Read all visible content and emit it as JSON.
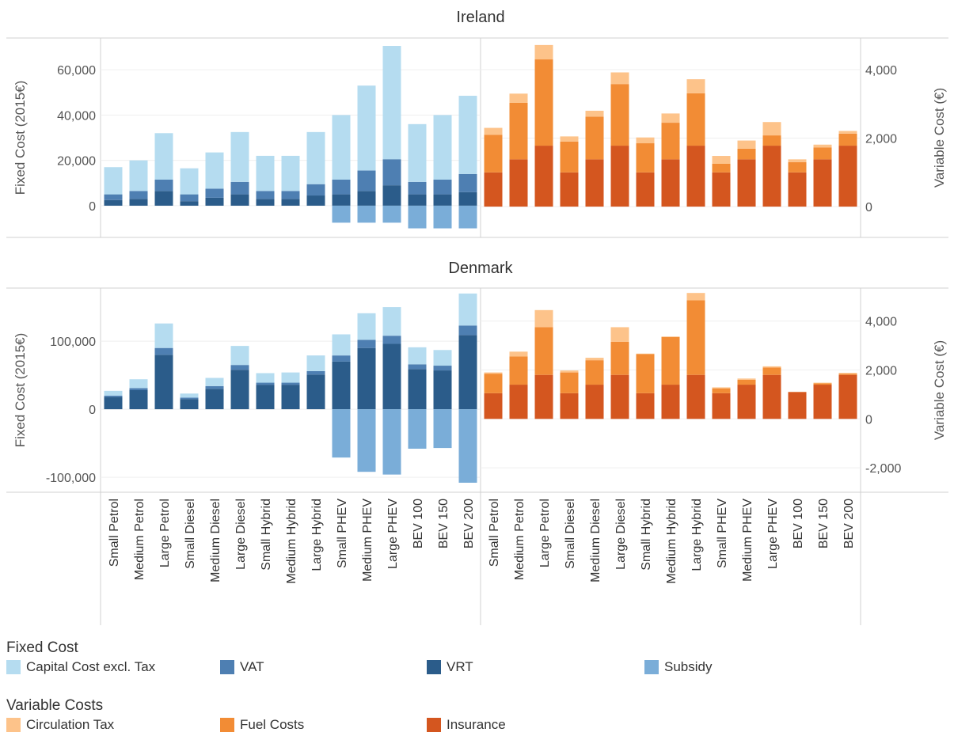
{
  "chart_data": [
    {
      "type": "bar",
      "title": "Ireland",
      "categories": [
        "Small Petrol",
        "Medium Petrol",
        "Large Petrol",
        "Small Diesel",
        "Medium Diesel",
        "Large Diesel",
        "Small Hybrid",
        "Medium Hybrid",
        "Large Hybrid",
        "Small PHEV",
        "Medium PHEV",
        "Large PHEV",
        "BEV 100",
        "BEV 150",
        "BEV 200"
      ],
      "fixed": {
        "ylabel": "Fixed Cost (2015€)",
        "ylim": [
          -14000,
          74000
        ],
        "ticks": [
          0,
          20000,
          40000,
          60000
        ],
        "tick_labels": [
          "0",
          "20,000",
          "40,000",
          "60,000"
        ],
        "series": [
          {
            "name": "VRT",
            "color": "#2b5c8a",
            "values": [
              2500,
              3000,
              6500,
              2000,
              3500,
              5000,
              3000,
              3000,
              4500,
              5000,
              6500,
              9000,
              5000,
              5000,
              6000
            ]
          },
          {
            "name": "VAT",
            "color": "#4e7fb2",
            "values": [
              2500,
              3500,
              5000,
              3000,
              4000,
              5500,
              3500,
              3500,
              5000,
              6500,
              9000,
              11500,
              5500,
              6500,
              8000
            ]
          },
          {
            "name": "Capital Cost excl. Tax",
            "color": "#b5dcf0",
            "values": [
              12000,
              13500,
              20500,
              11500,
              16000,
              22000,
              15500,
              15500,
              23000,
              28500,
              37500,
              50000,
              25500,
              28500,
              34500
            ]
          },
          {
            "name": "Subsidy",
            "color": "#7aadd8",
            "values": [
              0,
              0,
              0,
              0,
              0,
              0,
              0,
              0,
              0,
              -7500,
              -7500,
              -7500,
              -10000,
              -10000,
              -10000
            ]
          }
        ]
      },
      "variable": {
        "ylabel": "Variable Cost (€)",
        "ylim": [
          -900,
          4925
        ],
        "ticks": [
          0,
          2000,
          4000
        ],
        "tick_labels": [
          "0",
          "2,000",
          "4,000"
        ],
        "series": [
          {
            "name": "Insurance",
            "color": "#d4561f",
            "values": [
              1000,
              1380,
              1780,
              1000,
              1380,
              1780,
              1000,
              1380,
              1780,
              1000,
              1380,
              1780,
              1000,
              1380,
              1780
            ]
          },
          {
            "name": "Fuel Costs",
            "color": "#f28c35",
            "values": [
              1100,
              1650,
              2520,
              900,
              1250,
              1800,
              850,
              1070,
              1530,
              250,
              310,
              300,
              300,
              350,
              350
            ]
          },
          {
            "name": "Circulation Tax",
            "color": "#fdc38a",
            "values": [
              200,
              270,
              420,
              150,
              170,
              340,
              170,
              270,
              410,
              230,
              240,
              390,
              80,
              80,
              80
            ]
          }
        ]
      }
    },
    {
      "type": "bar",
      "title": "Denmark",
      "categories": [
        "Small Petrol",
        "Medium Petrol",
        "Large Petrol",
        "Small Diesel",
        "Medium Diesel",
        "Large Diesel",
        "Small Hybrid",
        "Medium Hybrid",
        "Large Hybrid",
        "Small PHEV",
        "Medium PHEV",
        "Large PHEV",
        "BEV 100",
        "BEV 150",
        "BEV 200"
      ],
      "fixed": {
        "ylabel": "Fixed Cost (2015€)",
        "ylim": [
          -122000,
          178000
        ],
        "ticks": [
          -100000,
          0,
          100000
        ],
        "tick_labels": [
          "-100,000",
          "0",
          "100,000"
        ],
        "series": [
          {
            "name": "VRT",
            "color": "#2b5c8a",
            "values": [
              18000,
              28000,
              80000,
              15000,
              30000,
              58000,
              36000,
              36000,
              51000,
              70000,
              90000,
              96000,
              59000,
              57000,
              109000
            ]
          },
          {
            "name": "VAT",
            "color": "#4e7fb2",
            "values": [
              2000,
              3000,
              10000,
              2000,
              4000,
              7000,
              3000,
              3000,
              5000,
              9000,
              12000,
              12000,
              7000,
              7000,
              14000
            ]
          },
          {
            "name": "Capital Cost excl. Tax",
            "color": "#b5dcf0",
            "values": [
              7000,
              13000,
              36000,
              6000,
              12000,
              28000,
              14000,
              15000,
              23000,
              31000,
              39000,
              42000,
              25000,
              23000,
              47000
            ]
          },
          {
            "name": "Subsidy",
            "color": "#7aadd8",
            "values": [
              0,
              0,
              0,
              0,
              0,
              0,
              0,
              0,
              0,
              -71000,
              -92000,
              -96000,
              -58000,
              -57000,
              -108000
            ]
          }
        ]
      },
      "variable": {
        "ylabel": "Variable Cost (€)",
        "ylim": [
          -3000,
          5350
        ],
        "ticks": [
          -2000,
          0,
          2000,
          4000
        ],
        "tick_labels": [
          "-2,000",
          "0",
          "2,000",
          "4,000"
        ],
        "series": [
          {
            "name": "Insurance",
            "color": "#d4561f",
            "values": [
              1050,
              1400,
              1800,
              1050,
              1400,
              1800,
              1050,
              1400,
              1800,
              1050,
              1400,
              1800,
              1100,
              1400,
              1800
            ]
          },
          {
            "name": "Fuel Costs",
            "color": "#f28c35",
            "values": [
              800,
              1150,
              1950,
              850,
              1000,
              1350,
              1600,
              1950,
              3050,
              200,
              200,
              300,
              0,
              50,
              50
            ]
          },
          {
            "name": "Circulation Tax",
            "color": "#fdc38a",
            "values": [
              50,
              200,
              700,
              80,
              100,
              600,
              20,
              20,
              300,
              40,
              50,
              50,
              10,
              30,
              30
            ]
          }
        ]
      }
    }
  ],
  "legend": {
    "fixed_title": "Fixed Cost",
    "fixed_items": [
      {
        "label": "Capital Cost excl. Tax",
        "color": "#b5dcf0"
      },
      {
        "label": "VAT",
        "color": "#4e7fb2"
      },
      {
        "label": "VRT",
        "color": "#2b5c8a"
      },
      {
        "label": "Subsidy",
        "color": "#7aadd8"
      }
    ],
    "variable_title": "Variable Costs",
    "variable_items": [
      {
        "label": "Circulation Tax",
        "color": "#fdc38a"
      },
      {
        "label": "Fuel Costs",
        "color": "#f28c35"
      },
      {
        "label": "Insurance",
        "color": "#d4561f"
      }
    ]
  }
}
